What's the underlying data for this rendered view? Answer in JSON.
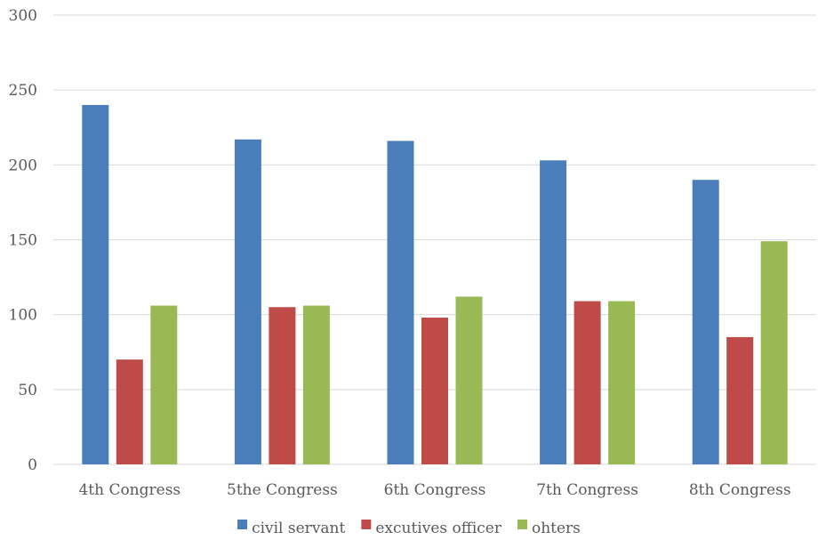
{
  "chart_data": {
    "type": "bar",
    "title": "",
    "xlabel": "",
    "ylabel": "",
    "categories": [
      "4th Congress",
      "5the Congress",
      "6th Congress",
      "7th Congress",
      "8th Congress"
    ],
    "series": [
      {
        "name": "civil servant",
        "values": [
          240,
          217,
          216,
          203,
          190
        ],
        "color": "#4a7ebb"
      },
      {
        "name": "excutives officer",
        "values": [
          70,
          105,
          98,
          109,
          85
        ],
        "color": "#be4b48"
      },
      {
        "name": "ohters",
        "values": [
          106,
          106,
          112,
          109,
          149
        ],
        "color": "#98b954"
      }
    ],
    "ylim": [
      0,
      300
    ],
    "yticks": [
      0,
      50,
      100,
      150,
      200,
      250,
      300
    ],
    "grid": true,
    "legend": "bottom"
  }
}
